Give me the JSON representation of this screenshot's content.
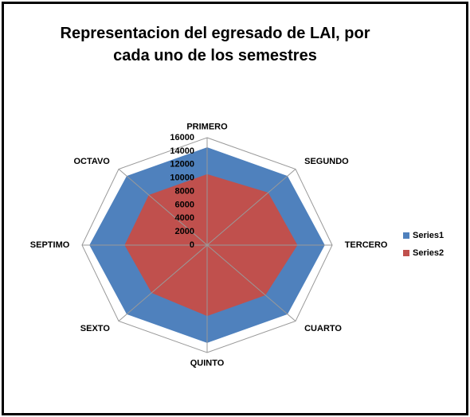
{
  "chart_data": {
    "type": "radar",
    "title": "Representacion del egresado de LAI, por cada uno de los semestres",
    "categories": [
      "PRIMERO",
      "SEGUNDO",
      "TERCERO",
      "CUARTO",
      "QUINTO",
      "SEXTO",
      "SEPTIMO",
      "OCTAVO"
    ],
    "series": [
      {
        "name": "Series1",
        "color": "#4f81bd",
        "values": [
          14500,
          14500,
          15000,
          14500,
          14500,
          14500,
          15000,
          14500
        ]
      },
      {
        "name": "Series2",
        "color": "#c0504d",
        "values": [
          10500,
          11000,
          11500,
          10500,
          10500,
          10000,
          10500,
          10500
        ]
      }
    ],
    "ylim": [
      0,
      16000
    ],
    "yticks": [
      0,
      2000,
      4000,
      6000,
      8000,
      10000,
      12000,
      14000,
      16000
    ],
    "grid": true,
    "legend": "right"
  }
}
